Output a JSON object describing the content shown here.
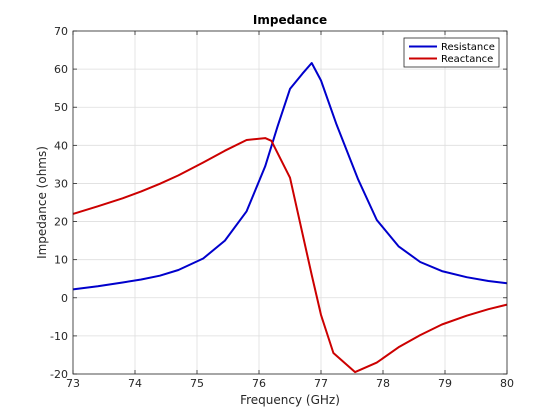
{
  "chart_data": {
    "type": "line",
    "title": "Impedance",
    "xlabel": "Frequency (GHz)",
    "ylabel": "Impedance (ohms)",
    "xlim": [
      73,
      80
    ],
    "ylim": [
      -20,
      70
    ],
    "xticks": [
      73,
      74,
      75,
      76,
      77,
      78,
      79,
      80
    ],
    "yticks": [
      -20,
      -10,
      0,
      10,
      20,
      30,
      40,
      50,
      60,
      70
    ],
    "grid": true,
    "legend_position": "top-right",
    "series": [
      {
        "name": "Resistance",
        "color": "#0000cc",
        "x": [
          73.0,
          73.4,
          73.8,
          74.1,
          74.4,
          74.7,
          75.1,
          75.45,
          75.8,
          76.1,
          76.3,
          76.5,
          76.7,
          76.85,
          77.0,
          77.25,
          77.6,
          77.9,
          78.25,
          78.6,
          78.95,
          79.35,
          79.7,
          80.0
        ],
        "y": [
          2.2,
          3.0,
          4.0,
          4.8,
          5.8,
          7.3,
          10.3,
          15.0,
          22.7,
          34.5,
          45.0,
          54.8,
          58.8,
          61.6,
          57.0,
          45.5,
          31.0,
          20.4,
          13.5,
          9.4,
          7.0,
          5.4,
          4.4,
          3.8
        ]
      },
      {
        "name": "Reactance",
        "color": "#cc0000",
        "x": [
          73.0,
          73.4,
          73.8,
          74.1,
          74.4,
          74.7,
          75.1,
          75.45,
          75.8,
          76.1,
          76.2,
          76.5,
          76.85,
          77.0,
          77.2,
          77.55,
          77.9,
          78.25,
          78.6,
          78.95,
          79.35,
          79.7,
          80.0
        ],
        "y": [
          22.0,
          24.0,
          26.1,
          27.9,
          29.9,
          32.1,
          35.5,
          38.6,
          41.4,
          41.9,
          41.2,
          31.5,
          6.0,
          -4.5,
          -14.5,
          -19.5,
          -17.0,
          -13.0,
          -9.8,
          -7.0,
          -4.7,
          -3.0,
          -1.8
        ]
      }
    ]
  }
}
